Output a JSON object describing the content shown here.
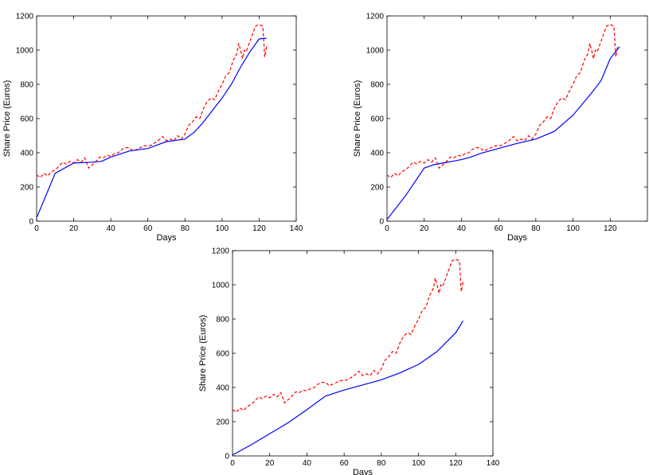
{
  "chart_data": [
    {
      "type": "line",
      "xlabel": "Days",
      "ylabel": "Share Price (Euros)",
      "xlim": [
        0,
        140
      ],
      "ylim": [
        0,
        1200
      ],
      "xticks": [
        0,
        20,
        40,
        60,
        80,
        100,
        120,
        140
      ],
      "yticks": [
        0,
        200,
        400,
        600,
        800,
        1000,
        1200
      ],
      "series": [
        {
          "style": "dashed",
          "color": "#ff0000",
          "x": [
            0,
            2,
            4,
            6,
            8,
            10,
            12,
            14,
            16,
            18,
            20,
            22,
            24,
            26,
            28,
            30,
            32,
            34,
            36,
            38,
            40,
            42,
            44,
            46,
            48,
            50,
            52,
            54,
            56,
            58,
            60,
            62,
            64,
            66,
            68,
            70,
            72,
            74,
            76,
            78,
            80,
            82,
            84,
            86,
            88,
            90,
            92,
            94,
            96,
            98,
            100,
            102,
            104,
            106,
            108,
            109,
            110,
            111,
            112,
            113,
            114,
            116,
            118,
            120,
            122,
            123,
            124
          ],
          "y": [
            270,
            255,
            280,
            265,
            290,
            300,
            320,
            345,
            335,
            350,
            340,
            360,
            345,
            370,
            310,
            330,
            350,
            375,
            370,
            385,
            380,
            395,
            400,
            420,
            430,
            430,
            410,
            420,
            430,
            440,
            440,
            445,
            460,
            475,
            495,
            470,
            480,
            470,
            500,
            480,
            510,
            560,
            580,
            610,
            600,
            660,
            700,
            720,
            710,
            760,
            800,
            850,
            870,
            940,
            980,
            1040,
            1000,
            950,
            1000,
            990,
            1020,
            1080,
            1140,
            1150,
            1140,
            960,
            1020
          ]
        },
        {
          "style": "solid",
          "color": "#0000ff",
          "x": [
            0,
            10,
            20,
            30,
            35,
            40,
            50,
            60,
            70,
            80,
            85,
            90,
            95,
            100,
            105,
            110,
            115,
            120,
            124
          ],
          "y": [
            20,
            280,
            340,
            345,
            350,
            375,
            410,
            425,
            465,
            480,
            520,
            580,
            650,
            720,
            800,
            900,
            990,
            1065,
            1070
          ]
        }
      ]
    },
    {
      "type": "line",
      "xlabel": "Days",
      "ylabel": "Share Price (Euros)",
      "xlim": [
        0,
        140
      ],
      "ylim": [
        0,
        1200
      ],
      "xticks": [
        0,
        20,
        40,
        60,
        80,
        100,
        120
      ],
      "yticks": [
        0,
        200,
        400,
        600,
        800,
        1000,
        1200
      ],
      "series": [
        {
          "style": "dashed",
          "color": "#ff0000",
          "x": [
            0,
            2,
            4,
            6,
            8,
            10,
            12,
            14,
            16,
            18,
            20,
            22,
            24,
            26,
            28,
            30,
            32,
            34,
            36,
            38,
            40,
            42,
            44,
            46,
            48,
            50,
            52,
            54,
            56,
            58,
            60,
            62,
            64,
            66,
            68,
            70,
            72,
            74,
            76,
            78,
            80,
            82,
            84,
            86,
            88,
            90,
            92,
            94,
            96,
            98,
            100,
            102,
            104,
            106,
            108,
            109,
            110,
            111,
            112,
            113,
            114,
            116,
            118,
            120,
            122,
            123,
            124
          ],
          "y": [
            270,
            255,
            280,
            265,
            290,
            300,
            320,
            345,
            335,
            350,
            340,
            360,
            345,
            370,
            310,
            330,
            350,
            375,
            370,
            385,
            380,
            395,
            400,
            420,
            430,
            430,
            410,
            420,
            430,
            440,
            440,
            445,
            460,
            475,
            495,
            470,
            480,
            470,
            500,
            480,
            510,
            560,
            580,
            610,
            600,
            660,
            700,
            720,
            710,
            760,
            800,
            850,
            870,
            940,
            980,
            1040,
            1000,
            950,
            1000,
            990,
            1020,
            1080,
            1140,
            1150,
            1140,
            960,
            1020
          ]
        },
        {
          "style": "solid",
          "color": "#0000ff",
          "x": [
            0,
            10,
            20,
            25,
            30,
            35,
            40,
            45,
            50,
            60,
            70,
            80,
            90,
            100,
            110,
            115,
            120,
            125
          ],
          "y": [
            10,
            150,
            310,
            330,
            340,
            350,
            360,
            375,
            395,
            425,
            455,
            480,
            525,
            620,
            750,
            820,
            950,
            1020
          ]
        }
      ]
    },
    {
      "type": "line",
      "xlabel": "Days",
      "ylabel": "Share Price (Euros)",
      "xlim": [
        0,
        140
      ],
      "ylim": [
        0,
        1200
      ],
      "xticks": [
        0,
        20,
        40,
        60,
        80,
        100,
        120,
        140
      ],
      "yticks": [
        0,
        200,
        400,
        600,
        800,
        1000,
        1200
      ],
      "series": [
        {
          "style": "dashed",
          "color": "#ff0000",
          "x": [
            0,
            2,
            4,
            6,
            8,
            10,
            12,
            14,
            16,
            18,
            20,
            22,
            24,
            26,
            28,
            30,
            32,
            34,
            36,
            38,
            40,
            42,
            44,
            46,
            48,
            50,
            52,
            54,
            56,
            58,
            60,
            62,
            64,
            66,
            68,
            70,
            72,
            74,
            76,
            78,
            80,
            82,
            84,
            86,
            88,
            90,
            92,
            94,
            96,
            98,
            100,
            102,
            104,
            106,
            108,
            109,
            110,
            111,
            112,
            113,
            114,
            116,
            118,
            120,
            122,
            123,
            124
          ],
          "y": [
            270,
            255,
            280,
            265,
            290,
            300,
            320,
            345,
            335,
            350,
            340,
            360,
            345,
            370,
            310,
            330,
            350,
            375,
            370,
            385,
            380,
            395,
            400,
            420,
            430,
            430,
            410,
            420,
            430,
            440,
            440,
            445,
            460,
            475,
            495,
            470,
            480,
            470,
            500,
            480,
            510,
            560,
            580,
            610,
            600,
            660,
            700,
            720,
            710,
            760,
            800,
            850,
            870,
            940,
            980,
            1040,
            1000,
            950,
            1000,
            990,
            1020,
            1080,
            1140,
            1150,
            1140,
            960,
            1020
          ]
        },
        {
          "style": "solid",
          "color": "#0000ff",
          "x": [
            0,
            10,
            20,
            30,
            40,
            50,
            60,
            70,
            80,
            90,
            100,
            110,
            120,
            124
          ],
          "y": [
            5,
            65,
            130,
            195,
            270,
            350,
            385,
            415,
            445,
            485,
            535,
            610,
            720,
            790
          ]
        }
      ]
    }
  ]
}
